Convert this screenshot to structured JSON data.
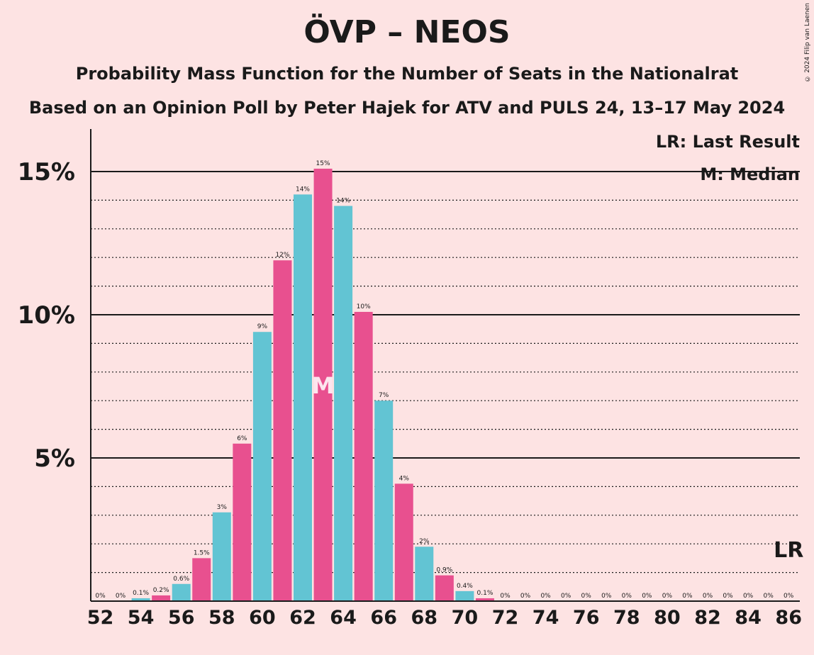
{
  "title": "ÖVP – NEOS",
  "subtitle": "Probability Mass Function for the Number of Seats in the Nationalrat",
  "subtitle2": "Based on an Opinion Poll by Peter Hajek for ATV and PULS 24, 13–17 May 2024",
  "copyright": "© 2024 Filip van Laenen",
  "legend": {
    "lr": "LR: Last Result",
    "median": "M: Median"
  },
  "colors": {
    "pink": "#e8508f",
    "teal": "#62c4d3",
    "background": "#fde3e3"
  },
  "chart_data": {
    "type": "bar",
    "x": [
      52,
      53,
      54,
      55,
      56,
      57,
      58,
      59,
      60,
      61,
      62,
      63,
      64,
      65,
      66,
      67,
      68,
      69,
      70,
      71,
      72,
      73,
      74,
      75,
      76,
      77,
      78,
      79,
      80,
      81,
      82,
      83,
      84,
      85,
      86
    ],
    "values": [
      0,
      0,
      0.1,
      0.2,
      0.6,
      1.5,
      3.1,
      5.5,
      9.4,
      11.9,
      14.2,
      15.1,
      13.8,
      10.1,
      7.0,
      4.1,
      1.9,
      0.9,
      0.35,
      0.1,
      0,
      0,
      0,
      0,
      0,
      0,
      0,
      0,
      0,
      0,
      0,
      0,
      0,
      0,
      0
    ],
    "labels": [
      "0%",
      "0%",
      "0.1%",
      "0.2%",
      "0.6%",
      "1.5%",
      "3%",
      "6%",
      "9%",
      "12%",
      "14%",
      "15%",
      "14%",
      "10%",
      "7%",
      "4%",
      "2%",
      "0.9%",
      "0.4%",
      "0.1%",
      "0%",
      "0%",
      "0%",
      "0%",
      "0%",
      "0%",
      "0%",
      "0%",
      "0%",
      "0%",
      "0%",
      "0%",
      "0%",
      "0%",
      "0%"
    ],
    "x_tick_labels": [
      "52",
      "54",
      "56",
      "58",
      "60",
      "62",
      "64",
      "66",
      "68",
      "70",
      "72",
      "74",
      "76",
      "78",
      "80",
      "82",
      "84",
      "86"
    ],
    "y_tick_labels": [
      "5%",
      "10%",
      "15%"
    ],
    "ylim": [
      0,
      16.5
    ],
    "median": 63,
    "median_label": "M",
    "last_result": 86,
    "last_result_label": "LR"
  }
}
